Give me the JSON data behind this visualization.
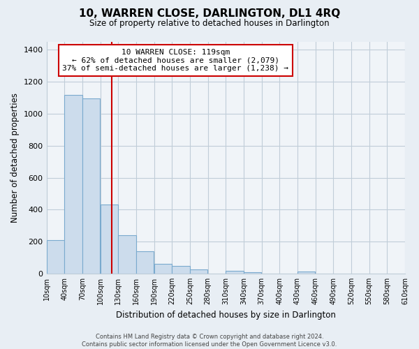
{
  "title": "10, WARREN CLOSE, DARLINGTON, DL1 4RQ",
  "subtitle": "Size of property relative to detached houses in Darlington",
  "xlabel": "Distribution of detached houses by size in Darlington",
  "ylabel": "Number of detached properties",
  "bar_color": "#ccdcec",
  "bar_edge_color": "#7aaace",
  "vline_x": 119,
  "vline_color": "#cc0000",
  "annotation_line1": "10 WARREN CLOSE: 119sqm",
  "annotation_line2": "← 62% of detached houses are smaller (2,079)",
  "annotation_line3": "37% of semi-detached houses are larger (1,238) →",
  "annotation_box_color": "white",
  "annotation_box_edge_color": "#cc0000",
  "footer_text": "Contains HM Land Registry data © Crown copyright and database right 2024.\nContains public sector information licensed under the Open Government Licence v3.0.",
  "bin_edges": [
    10,
    40,
    70,
    100,
    130,
    160,
    190,
    220,
    250,
    280,
    310,
    340,
    370,
    400,
    430,
    460,
    490,
    520,
    550,
    580,
    610
  ],
  "bar_heights": [
    210,
    1120,
    1095,
    430,
    240,
    140,
    60,
    47,
    25,
    0,
    15,
    10,
    0,
    0,
    13,
    0,
    0,
    0,
    0,
    0
  ],
  "ylim": [
    0,
    1450
  ],
  "yticks": [
    0,
    200,
    400,
    600,
    800,
    1000,
    1200,
    1400
  ],
  "tick_labels": [
    "10sqm",
    "40sqm",
    "70sqm",
    "100sqm",
    "130sqm",
    "160sqm",
    "190sqm",
    "220sqm",
    "250sqm",
    "280sqm",
    "310sqm",
    "340sqm",
    "370sqm",
    "400sqm",
    "430sqm",
    "460sqm",
    "490sqm",
    "520sqm",
    "550sqm",
    "580sqm",
    "610sqm"
  ],
  "background_color": "#e8eef4",
  "plot_bg_color": "#f0f4f8",
  "grid_color": "#c0cdd8"
}
